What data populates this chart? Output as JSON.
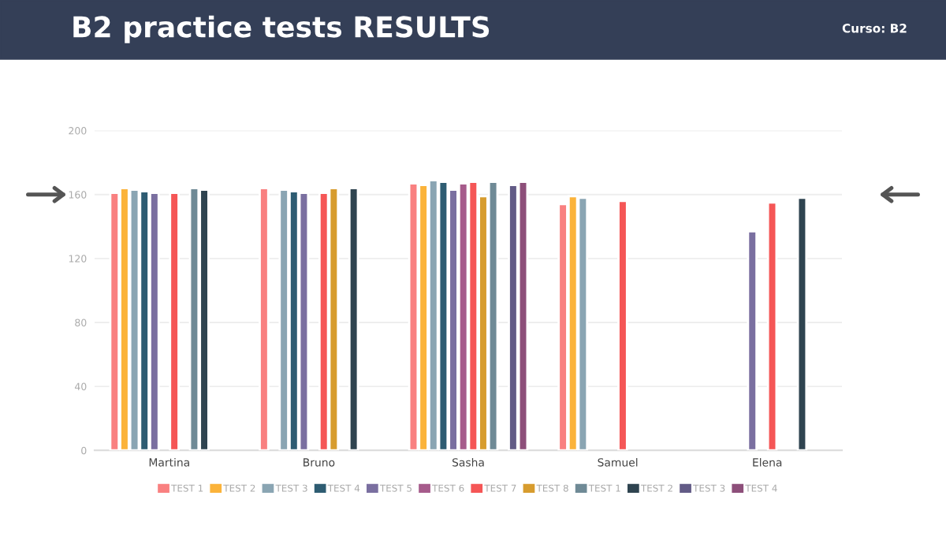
{
  "chart_data": {
    "type": "bar",
    "title": "B2 practice tests RESULTS",
    "subtitle": "Curso: B2",
    "categories": [
      "Martina",
      "Bruno",
      "Sasha",
      "Samuel",
      "Elena"
    ],
    "series": [
      {
        "name": "TEST 1",
        "color": "#f98080",
        "values": [
          161,
          164,
          167,
          154,
          null
        ]
      },
      {
        "name": "TEST 2",
        "color": "#fbb33a",
        "values": [
          164,
          null,
          166,
          159,
          null
        ]
      },
      {
        "name": "TEST 3",
        "color": "#8aa5b3",
        "values": [
          163,
          163,
          169,
          158,
          null
        ]
      },
      {
        "name": "TEST 4",
        "color": "#2e5c72",
        "values": [
          162,
          162,
          168,
          null,
          null
        ]
      },
      {
        "name": "TEST 5",
        "color": "#7a6fa0",
        "values": [
          161,
          161,
          163,
          null,
          137
        ]
      },
      {
        "name": "TEST 6",
        "color": "#a65b8b",
        "values": [
          null,
          null,
          167,
          null,
          null
        ]
      },
      {
        "name": "TEST 7",
        "color": "#f55656",
        "values": [
          161,
          161,
          168,
          156,
          155
        ]
      },
      {
        "name": "TEST 8",
        "color": "#d79c2e",
        "values": [
          null,
          164,
          159,
          null,
          null
        ]
      },
      {
        "name": "TEST 1",
        "color": "#6f8a96",
        "values": [
          164,
          null,
          168,
          null,
          null
        ]
      },
      {
        "name": "TEST 2",
        "color": "#2f4450",
        "values": [
          163,
          164,
          null,
          null,
          158
        ]
      },
      {
        "name": "TEST 3",
        "color": "#625b86",
        "values": [
          null,
          null,
          166,
          null,
          null
        ]
      },
      {
        "name": "TEST 4",
        "color": "#8d4f7a",
        "values": [
          null,
          null,
          168,
          null,
          null
        ]
      }
    ],
    "ylim": [
      0,
      200
    ],
    "yticks": [
      0,
      40,
      80,
      120,
      160,
      200
    ],
    "grid": "y",
    "legend": "bottom"
  }
}
